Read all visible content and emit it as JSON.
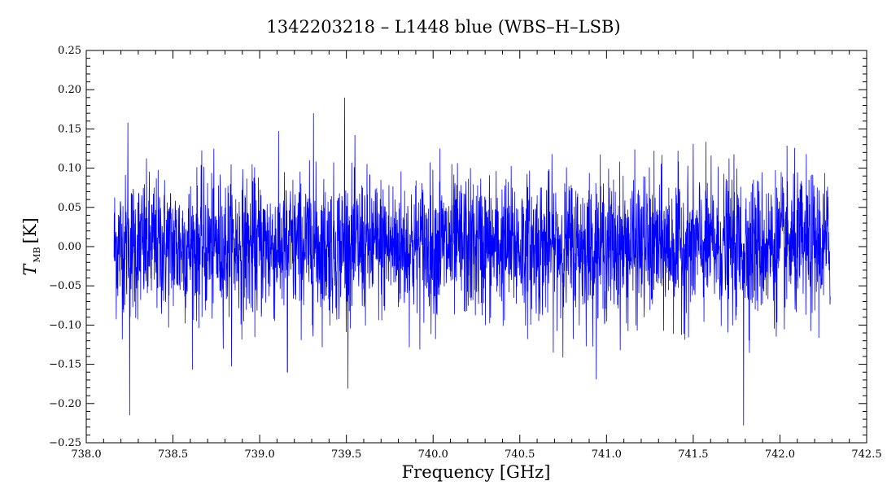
{
  "chart_data": {
    "type": "line",
    "title": "1342203218 – L1448 blue (WBS–H–LSB)",
    "xlabel": "Frequency [GHz]",
    "ylabel": {
      "symbol": "T",
      "subscript": "MB",
      "unit": "[K]"
    },
    "xlim": [
      738.0,
      742.5
    ],
    "ylim": [
      -0.25,
      0.25
    ],
    "x_ticks": [
      738.0,
      738.5,
      739.0,
      739.5,
      740.0,
      740.5,
      741.0,
      741.5,
      742.0,
      742.5
    ],
    "x_tick_labels": [
      "738.0",
      "738.5",
      "739.0",
      "739.5",
      "740.0",
      "740.5",
      "741.0",
      "741.5",
      "742.0",
      "742.5"
    ],
    "y_ticks": [
      -0.25,
      -0.2,
      -0.15,
      -0.1,
      -0.05,
      0.0,
      0.05,
      0.1,
      0.15,
      0.2,
      0.25
    ],
    "y_tick_labels": [
      "−0.25",
      "−0.20",
      "−0.15",
      "−0.10",
      "−0.05",
      "0.00",
      "0.05",
      "0.10",
      "0.15",
      "0.20",
      "0.25"
    ],
    "grid": false,
    "series": [
      {
        "color": "#0000ff",
        "x_start": 738.16,
        "x_end": 742.29,
        "baseline": 0.0,
        "noise_rms": 0.045,
        "peaks": [
          {
            "x": 738.25,
            "y": -0.215
          },
          {
            "x": 738.24,
            "y": 0.158
          },
          {
            "x": 739.31,
            "y": 0.17
          },
          {
            "x": 739.49,
            "y": 0.19
          },
          {
            "x": 741.79,
            "y": -0.228
          },
          {
            "x": 740.04,
            "y": 0.125
          },
          {
            "x": 739.16,
            "y": -0.16
          }
        ]
      }
    ]
  }
}
